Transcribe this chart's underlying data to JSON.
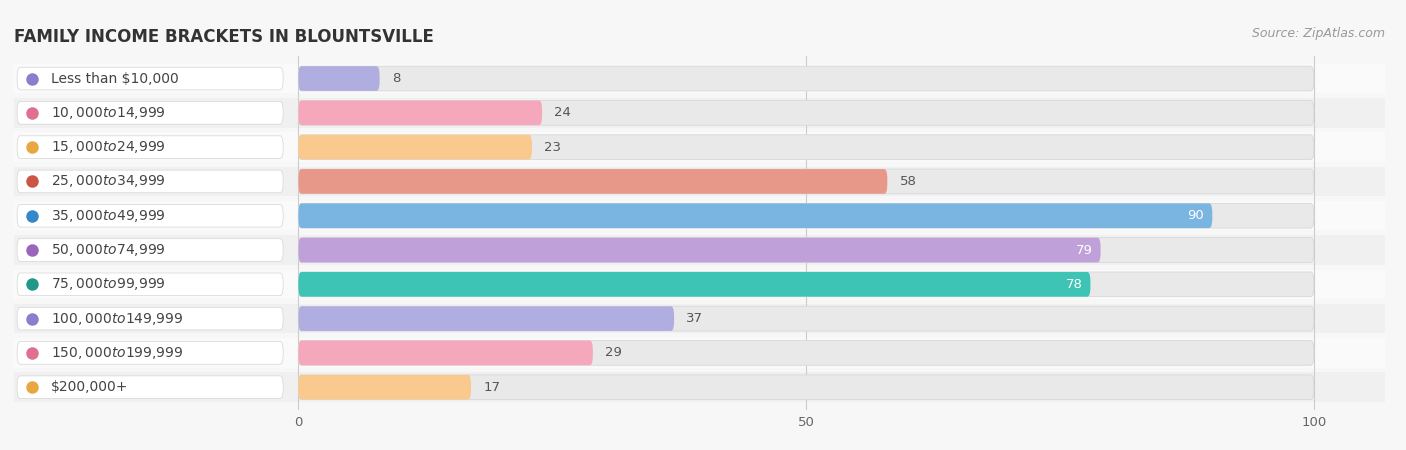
{
  "title": "FAMILY INCOME BRACKETS IN BLOUNTSVILLE",
  "source": "Source: ZipAtlas.com",
  "categories": [
    "Less than $10,000",
    "$10,000 to $14,999",
    "$15,000 to $24,999",
    "$25,000 to $34,999",
    "$35,000 to $49,999",
    "$50,000 to $74,999",
    "$75,000 to $99,999",
    "$100,000 to $149,999",
    "$150,000 to $199,999",
    "$200,000+"
  ],
  "values": [
    8,
    24,
    23,
    58,
    90,
    79,
    78,
    37,
    29,
    17
  ],
  "bar_colors": [
    "#b0aee0",
    "#f5a8bc",
    "#f9c98e",
    "#e89888",
    "#7ab4e0",
    "#c0a0d8",
    "#3ec4b4",
    "#b0aee0",
    "#f5a8bc",
    "#f9c98e"
  ],
  "dot_colors": [
    "#8880cc",
    "#e07090",
    "#e8a840",
    "#cc5545",
    "#3388cc",
    "#9966bb",
    "#229988",
    "#8880cc",
    "#e07090",
    "#e8a840"
  ],
  "value_inside": [
    false,
    false,
    false,
    false,
    true,
    true,
    true,
    false,
    false,
    false
  ],
  "xlim": [
    0,
    100
  ],
  "xticks": [
    0,
    50,
    100
  ],
  "background_color": "#f7f7f7",
  "bar_bg_color": "#e9e9e9",
  "row_bg_even": "#f0f0f0",
  "row_bg_odd": "#fafafa",
  "title_fontsize": 12,
  "label_fontsize": 10,
  "value_fontsize": 9.5,
  "source_fontsize": 9
}
